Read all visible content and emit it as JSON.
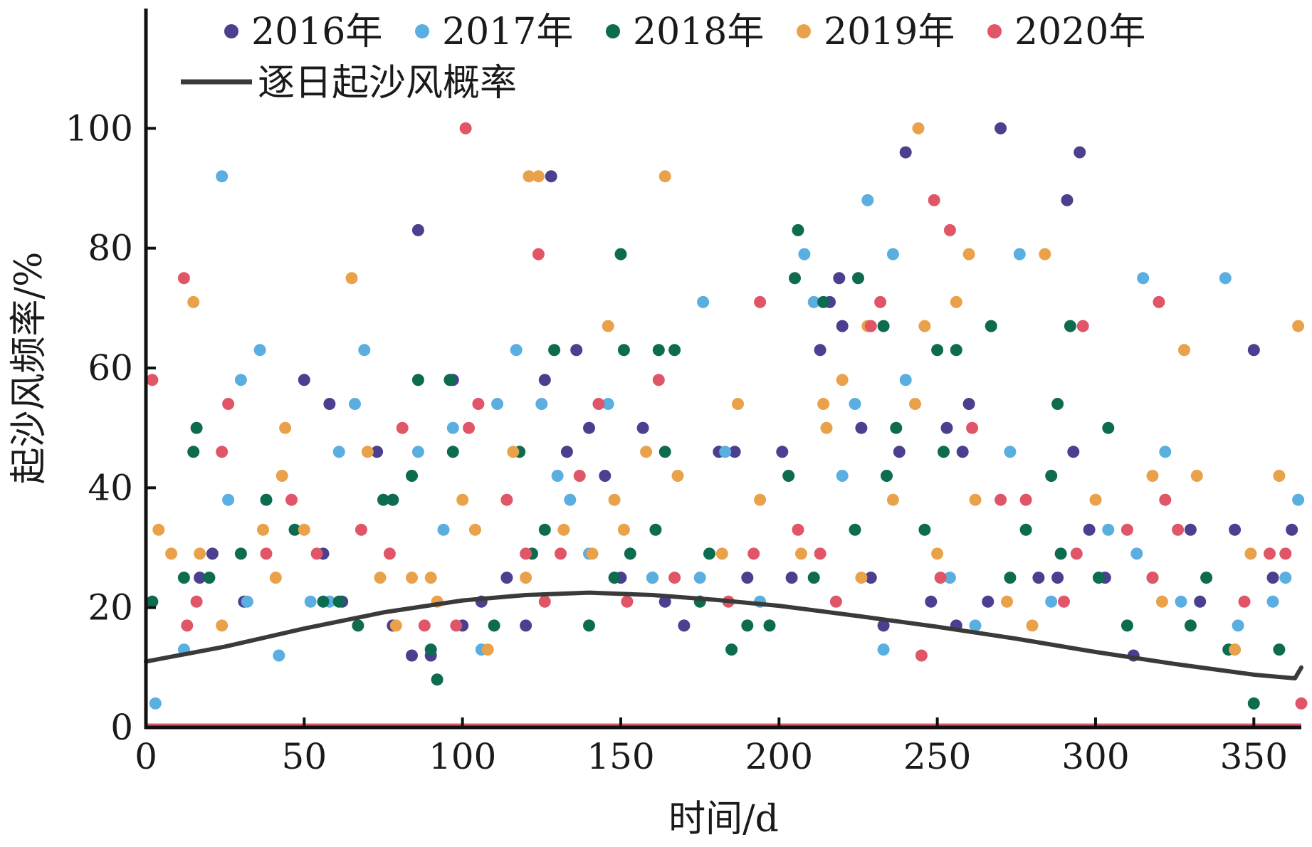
{
  "chart_data": {
    "type": "scatter",
    "xlabel": "时间/d",
    "ylabel": "起沙风频率/%",
    "xlim": [
      0,
      365
    ],
    "ylim": [
      0,
      120
    ],
    "xticks": [
      0,
      50,
      100,
      150,
      200,
      250,
      300,
      350
    ],
    "yticks": [
      0,
      20,
      40,
      60,
      80,
      100
    ],
    "grid": false,
    "legend_position": "top",
    "series": [
      {
        "name": "2016年",
        "color": "#4b3f8f",
        "marker": "dot",
        "points": [
          [
            17,
            25
          ],
          [
            21,
            29
          ],
          [
            31,
            21
          ],
          [
            50,
            58
          ],
          [
            56,
            29
          ],
          [
            58,
            54
          ],
          [
            62,
            21
          ],
          [
            73,
            46
          ],
          [
            78,
            17
          ],
          [
            84,
            12
          ],
          [
            86,
            83
          ],
          [
            90,
            12
          ],
          [
            97,
            58
          ],
          [
            100,
            17
          ],
          [
            106,
            21
          ],
          [
            114,
            25
          ],
          [
            120,
            17
          ],
          [
            126,
            58
          ],
          [
            128,
            92
          ],
          [
            133,
            46
          ],
          [
            136,
            63
          ],
          [
            140,
            50
          ],
          [
            145,
            42
          ],
          [
            150,
            25
          ],
          [
            157,
            50
          ],
          [
            160,
            25
          ],
          [
            164,
            21
          ],
          [
            170,
            17
          ],
          [
            181,
            46
          ],
          [
            186,
            46
          ],
          [
            190,
            25
          ],
          [
            201,
            46
          ],
          [
            204,
            25
          ],
          [
            213,
            63
          ],
          [
            216,
            71
          ],
          [
            219,
            75
          ],
          [
            220,
            67
          ],
          [
            226,
            50
          ],
          [
            229,
            25
          ],
          [
            233,
            17
          ],
          [
            238,
            46
          ],
          [
            240,
            96
          ],
          [
            248,
            21
          ],
          [
            253,
            50
          ],
          [
            256,
            17
          ],
          [
            258,
            46
          ],
          [
            260,
            54
          ],
          [
            266,
            21
          ],
          [
            270,
            100
          ],
          [
            282,
            25
          ],
          [
            288,
            25
          ],
          [
            291,
            88
          ],
          [
            293,
            46
          ],
          [
            295,
            96
          ],
          [
            298,
            33
          ],
          [
            303,
            25
          ],
          [
            312,
            12
          ],
          [
            330,
            33
          ],
          [
            333,
            21
          ],
          [
            344,
            33
          ],
          [
            350,
            63
          ],
          [
            356,
            25
          ],
          [
            362,
            33
          ]
        ]
      },
      {
        "name": "2017年",
        "color": "#5aaee0",
        "marker": "dot",
        "points": [
          [
            3,
            4
          ],
          [
            12,
            13
          ],
          [
            24,
            92
          ],
          [
            26,
            38
          ],
          [
            30,
            58
          ],
          [
            32,
            21
          ],
          [
            36,
            63
          ],
          [
            42,
            12
          ],
          [
            52,
            21
          ],
          [
            58,
            21
          ],
          [
            61,
            46
          ],
          [
            66,
            54
          ],
          [
            69,
            63
          ],
          [
            78,
            38
          ],
          [
            86,
            46
          ],
          [
            94,
            33
          ],
          [
            97,
            50
          ],
          [
            106,
            13
          ],
          [
            111,
            54
          ],
          [
            117,
            63
          ],
          [
            125,
            54
          ],
          [
            130,
            42
          ],
          [
            134,
            38
          ],
          [
            140,
            29
          ],
          [
            146,
            54
          ],
          [
            160,
            25
          ],
          [
            175,
            25
          ],
          [
            176,
            71
          ],
          [
            183,
            46
          ],
          [
            194,
            21
          ],
          [
            208,
            79
          ],
          [
            211,
            71
          ],
          [
            220,
            42
          ],
          [
            224,
            54
          ],
          [
            228,
            88
          ],
          [
            233,
            13
          ],
          [
            236,
            79
          ],
          [
            240,
            58
          ],
          [
            254,
            25
          ],
          [
            262,
            17
          ],
          [
            273,
            46
          ],
          [
            276,
            79
          ],
          [
            286,
            21
          ],
          [
            304,
            33
          ],
          [
            313,
            29
          ],
          [
            315,
            75
          ],
          [
            322,
            46
          ],
          [
            327,
            21
          ],
          [
            341,
            75
          ],
          [
            345,
            17
          ],
          [
            356,
            21
          ],
          [
            360,
            25
          ],
          [
            364,
            38
          ]
        ]
      },
      {
        "name": "2018年",
        "color": "#0d6b4f",
        "marker": "dot",
        "points": [
          [
            2,
            21
          ],
          [
            12,
            25
          ],
          [
            15,
            46
          ],
          [
            16,
            50
          ],
          [
            20,
            25
          ],
          [
            30,
            29
          ],
          [
            38,
            38
          ],
          [
            47,
            33
          ],
          [
            56,
            21
          ],
          [
            61,
            21
          ],
          [
            67,
            17
          ],
          [
            75,
            38
          ],
          [
            78,
            38
          ],
          [
            84,
            42
          ],
          [
            86,
            58
          ],
          [
            90,
            13
          ],
          [
            92,
            8
          ],
          [
            96,
            58
          ],
          [
            97,
            46
          ],
          [
            110,
            17
          ],
          [
            118,
            46
          ],
          [
            122,
            29
          ],
          [
            126,
            33
          ],
          [
            129,
            63
          ],
          [
            140,
            17
          ],
          [
            148,
            25
          ],
          [
            150,
            79
          ],
          [
            151,
            63
          ],
          [
            153,
            29
          ],
          [
            161,
            33
          ],
          [
            162,
            63
          ],
          [
            164,
            46
          ],
          [
            167,
            63
          ],
          [
            175,
            21
          ],
          [
            178,
            29
          ],
          [
            185,
            13
          ],
          [
            190,
            17
          ],
          [
            197,
            17
          ],
          [
            203,
            42
          ],
          [
            205,
            75
          ],
          [
            206,
            83
          ],
          [
            211,
            25
          ],
          [
            214,
            71
          ],
          [
            224,
            33
          ],
          [
            225,
            75
          ],
          [
            233,
            67
          ],
          [
            234,
            42
          ],
          [
            237,
            50
          ],
          [
            246,
            33
          ],
          [
            250,
            63
          ],
          [
            252,
            46
          ],
          [
            256,
            63
          ],
          [
            267,
            67
          ],
          [
            273,
            25
          ],
          [
            278,
            33
          ],
          [
            286,
            42
          ],
          [
            288,
            54
          ],
          [
            289,
            29
          ],
          [
            292,
            67
          ],
          [
            301,
            25
          ],
          [
            304,
            50
          ],
          [
            310,
            17
          ],
          [
            318,
            25
          ],
          [
            330,
            17
          ],
          [
            335,
            25
          ],
          [
            342,
            13
          ],
          [
            350,
            4
          ],
          [
            358,
            13
          ]
        ]
      },
      {
        "name": "2019年",
        "color": "#e9a24a",
        "marker": "dot",
        "points": [
          [
            4,
            33
          ],
          [
            8,
            29
          ],
          [
            15,
            71
          ],
          [
            17,
            29
          ],
          [
            24,
            17
          ],
          [
            37,
            33
          ],
          [
            41,
            25
          ],
          [
            43,
            42
          ],
          [
            44,
            50
          ],
          [
            50,
            33
          ],
          [
            65,
            75
          ],
          [
            70,
            46
          ],
          [
            74,
            25
          ],
          [
            79,
            17
          ],
          [
            84,
            25
          ],
          [
            90,
            25
          ],
          [
            92,
            21
          ],
          [
            100,
            38
          ],
          [
            104,
            33
          ],
          [
            108,
            13
          ],
          [
            116,
            46
          ],
          [
            120,
            25
          ],
          [
            121,
            92
          ],
          [
            124,
            92
          ],
          [
            132,
            33
          ],
          [
            141,
            29
          ],
          [
            146,
            67
          ],
          [
            148,
            38
          ],
          [
            151,
            33
          ],
          [
            158,
            46
          ],
          [
            164,
            92
          ],
          [
            168,
            42
          ],
          [
            182,
            29
          ],
          [
            187,
            54
          ],
          [
            194,
            38
          ],
          [
            207,
            29
          ],
          [
            214,
            54
          ],
          [
            215,
            50
          ],
          [
            220,
            58
          ],
          [
            226,
            25
          ],
          [
            228,
            67
          ],
          [
            236,
            38
          ],
          [
            243,
            54
          ],
          [
            244,
            100
          ],
          [
            246,
            67
          ],
          [
            250,
            29
          ],
          [
            256,
            71
          ],
          [
            260,
            79
          ],
          [
            262,
            38
          ],
          [
            272,
            21
          ],
          [
            280,
            17
          ],
          [
            284,
            79
          ],
          [
            300,
            38
          ],
          [
            318,
            42
          ],
          [
            321,
            21
          ],
          [
            328,
            63
          ],
          [
            332,
            42
          ],
          [
            344,
            13
          ],
          [
            349,
            29
          ],
          [
            358,
            42
          ],
          [
            364,
            67
          ]
        ]
      },
      {
        "name": "2020年",
        "color": "#e05567",
        "marker": "dot",
        "points": [
          [
            2,
            58
          ],
          [
            12,
            75
          ],
          [
            13,
            17
          ],
          [
            16,
            21
          ],
          [
            24,
            46
          ],
          [
            26,
            54
          ],
          [
            38,
            29
          ],
          [
            46,
            38
          ],
          [
            54,
            29
          ],
          [
            68,
            33
          ],
          [
            77,
            29
          ],
          [
            81,
            50
          ],
          [
            88,
            17
          ],
          [
            98,
            17
          ],
          [
            101,
            100
          ],
          [
            102,
            50
          ],
          [
            105,
            54
          ],
          [
            114,
            38
          ],
          [
            120,
            29
          ],
          [
            124,
            79
          ],
          [
            126,
            21
          ],
          [
            131,
            29
          ],
          [
            137,
            42
          ],
          [
            143,
            54
          ],
          [
            152,
            21
          ],
          [
            162,
            58
          ],
          [
            167,
            25
          ],
          [
            184,
            21
          ],
          [
            192,
            29
          ],
          [
            194,
            71
          ],
          [
            206,
            33
          ],
          [
            213,
            29
          ],
          [
            218,
            21
          ],
          [
            229,
            67
          ],
          [
            232,
            71
          ],
          [
            245,
            12
          ],
          [
            249,
            88
          ],
          [
            251,
            25
          ],
          [
            254,
            83
          ],
          [
            261,
            50
          ],
          [
            270,
            38
          ],
          [
            278,
            38
          ],
          [
            290,
            21
          ],
          [
            294,
            29
          ],
          [
            296,
            67
          ],
          [
            310,
            33
          ],
          [
            318,
            25
          ],
          [
            320,
            71
          ],
          [
            322,
            38
          ],
          [
            326,
            33
          ],
          [
            347,
            21
          ],
          [
            355,
            29
          ],
          [
            360,
            29
          ],
          [
            365,
            4
          ]
        ]
      },
      {
        "name": "逐日起沙风概率",
        "color": "#3a3a3a",
        "marker": "line",
        "x": [
          0,
          25,
          50,
          75,
          100,
          120,
          140,
          160,
          180,
          200,
          225,
          250,
          275,
          300,
          325,
          350,
          363,
          365
        ],
        "y": [
          11,
          13.5,
          16.5,
          19.2,
          21.2,
          22.1,
          22.5,
          22.1,
          21.3,
          20.3,
          18.6,
          16.8,
          14.8,
          12.6,
          10.6,
          8.8,
          8.2,
          10
        ]
      }
    ]
  }
}
